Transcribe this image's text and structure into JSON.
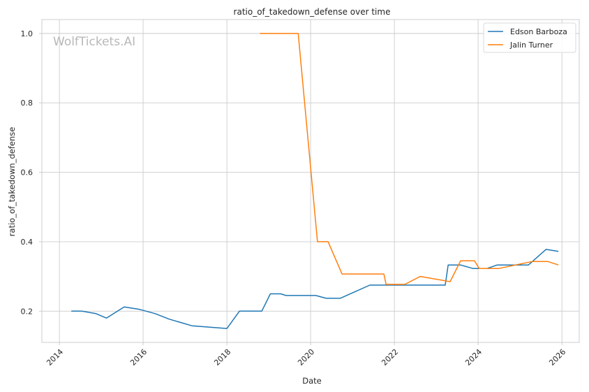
{
  "chart_data": {
    "type": "line",
    "title": "ratio_of_takedown_defense over time",
    "xlabel": "Date",
    "ylabel": "ratio_of_takedown_defense",
    "watermark": "WolfTickets.AI",
    "x_ticks": [
      "2014",
      "2016",
      "2018",
      "2020",
      "2022",
      "2024",
      "2026"
    ],
    "y_ticks": [
      "0.2",
      "0.4",
      "0.6",
      "0.8",
      "1.0"
    ],
    "xlim": [
      "2013-08-01",
      "2026-06-01"
    ],
    "ylim": [
      0.11,
      1.04
    ],
    "grid": true,
    "legend_position": "top-right",
    "series": [
      {
        "name": "Edson Barboza",
        "color": "#1f77b4",
        "points": [
          [
            "2014-04-15",
            0.2
          ],
          [
            "2014-07-15",
            0.2
          ],
          [
            "2014-11-15",
            0.193
          ],
          [
            "2015-02-15",
            0.18
          ],
          [
            "2015-07-20",
            0.212
          ],
          [
            "2015-12-01",
            0.205
          ],
          [
            "2016-04-15",
            0.193
          ],
          [
            "2016-08-15",
            0.177
          ],
          [
            "2017-03-01",
            0.158
          ],
          [
            "2018-01-01",
            0.15
          ],
          [
            "2018-04-20",
            0.2
          ],
          [
            "2018-11-01",
            0.2
          ],
          [
            "2019-01-15",
            0.25
          ],
          [
            "2019-04-15",
            0.25
          ],
          [
            "2019-06-01",
            0.245
          ],
          [
            "2020-02-15",
            0.245
          ],
          [
            "2020-05-15",
            0.237
          ],
          [
            "2020-09-15",
            0.237
          ],
          [
            "2021-06-01",
            0.275
          ],
          [
            "2023-03-20",
            0.275
          ],
          [
            "2023-04-15",
            0.333
          ],
          [
            "2023-08-01",
            0.333
          ],
          [
            "2023-11-15",
            0.323
          ],
          [
            "2024-03-20",
            0.323
          ],
          [
            "2024-06-15",
            0.333
          ],
          [
            "2025-03-15",
            0.333
          ],
          [
            "2025-08-15",
            0.378
          ],
          [
            "2025-12-01",
            0.372
          ]
        ]
      },
      {
        "name": "Jalin Turner",
        "color": "#ff7f0e",
        "points": [
          [
            "2018-10-15",
            1.0
          ],
          [
            "2019-09-15",
            1.0
          ],
          [
            "2020-03-01",
            0.4
          ],
          [
            "2020-06-01",
            0.4
          ],
          [
            "2020-10-01",
            0.307
          ],
          [
            "2021-10-01",
            0.307
          ],
          [
            "2021-10-20",
            0.277
          ],
          [
            "2022-04-01",
            0.277
          ],
          [
            "2022-08-15",
            0.3
          ],
          [
            "2023-05-01",
            0.285
          ],
          [
            "2023-08-01",
            0.345
          ],
          [
            "2023-12-01",
            0.345
          ],
          [
            "2024-01-10",
            0.323
          ],
          [
            "2024-07-01",
            0.323
          ],
          [
            "2025-04-15",
            0.343
          ],
          [
            "2025-09-01",
            0.343
          ],
          [
            "2025-12-01",
            0.333
          ]
        ]
      }
    ]
  }
}
